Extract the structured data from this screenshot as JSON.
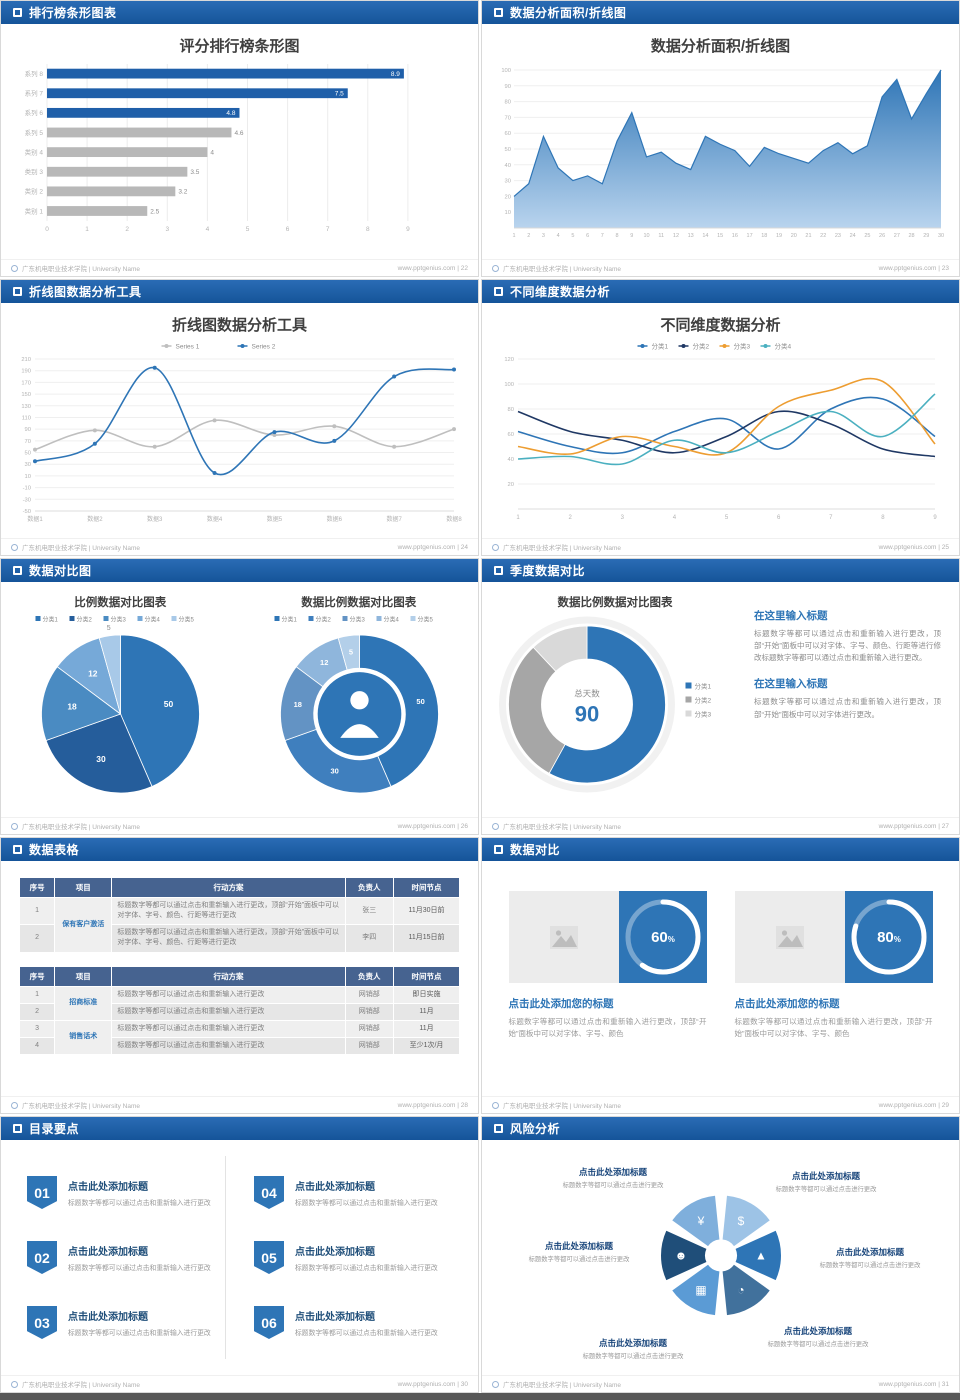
{
  "footer_left": "广东机电职业技术学院 | University Name",
  "accent": "#1f5fa9",
  "slides": [
    {
      "header": "排行榜条形图表",
      "title": "评分排行榜条形图",
      "footer_right": "www.pptgenius.com | 22",
      "chart_data": {
        "type": "bar_horizontal",
        "title": "评分排行榜条形图",
        "categories": [
          "系列 8",
          "系列 7",
          "系列 6",
          "系列 5",
          "类别 4",
          "类别 3",
          "类别 2",
          "类别 1"
        ],
        "values": [
          8.9,
          7.5,
          4.8,
          4.6,
          4,
          3.5,
          3.2,
          2.5
        ],
        "bar_colors": [
          "#1f5fa9",
          "#1f5fa9",
          "#1f5fa9",
          "#b8b8b8",
          "#b8b8b8",
          "#b8b8b8",
          "#b8b8b8",
          "#b8b8b8"
        ],
        "accent": "#1f5fa9",
        "xlim": [
          0,
          10
        ],
        "xticks": [
          0,
          1,
          2,
          3,
          4,
          5,
          6,
          7,
          8,
          9
        ]
      }
    },
    {
      "header": "数据分析面积/折线图",
      "title": "数据分析面积/折线图",
      "footer_right": "www.pptgenius.com | 23",
      "chart_data": {
        "type": "area",
        "title": "数据分析面积/折线图",
        "x": [
          1,
          2,
          3,
          4,
          5,
          6,
          7,
          8,
          9,
          10,
          11,
          12,
          13,
          14,
          15,
          16,
          17,
          18,
          19,
          20,
          21,
          22,
          23,
          24,
          25,
          26,
          27,
          28,
          29,
          30
        ],
        "values": [
          20,
          28,
          58,
          38,
          30,
          33,
          28,
          55,
          73,
          45,
          48,
          41,
          37,
          58,
          53,
          49,
          39,
          51,
          47,
          44,
          41,
          49,
          54,
          47,
          52,
          83,
          94,
          69,
          85,
          100
        ],
        "yticks": [
          10,
          20,
          30,
          40,
          50,
          60,
          70,
          80,
          90,
          100
        ],
        "ylim": [
          0,
          100
        ],
        "line_color": "#2e75b6",
        "fill_from": "#2e75b6",
        "fill_to": "#b9d4ee"
      }
    },
    {
      "header": "折线图数据分析工具",
      "title": "折线图数据分析工具",
      "footer_right": "www.pptgenius.com | 24",
      "chart_data": {
        "type": "line",
        "title": "折线图数据分析工具",
        "categories": [
          "数据1",
          "数据2",
          "数据3",
          "数据4",
          "数据5",
          "数据6",
          "数据7",
          "数据8"
        ],
        "ylim": [
          -50,
          210
        ],
        "yticks": [
          -50,
          -30,
          -10,
          10,
          30,
          50,
          70,
          90,
          110,
          130,
          150,
          170,
          190,
          210
        ],
        "markers": true,
        "series": [
          {
            "name": "Series 1",
            "color": "#bfbfbf",
            "values": [
              55,
              88,
              60,
              105,
              80,
              95,
              60,
              90
            ]
          },
          {
            "name": "Series 2",
            "color": "#2e75b6",
            "values": [
              35,
              65,
              195,
              15,
              85,
              70,
              180,
              192
            ]
          }
        ]
      }
    },
    {
      "header": "不同维度数据分析",
      "title": "不同维度数据分析",
      "footer_right": "www.pptgenius.com | 25",
      "chart_data": {
        "type": "line",
        "title": "不同维度数据分析",
        "categories": [
          "1",
          "2",
          "3",
          "4",
          "5",
          "6",
          "7",
          "8",
          "9"
        ],
        "ylim": [
          0,
          120
        ],
        "yticks": [
          20,
          40,
          60,
          80,
          100,
          120
        ],
        "markers": false,
        "series": [
          {
            "name": "分类1",
            "color": "#2e75b6",
            "values": [
              62,
              50,
              45,
              62,
              72,
              48,
              80,
              88,
              58
            ]
          },
          {
            "name": "分类2",
            "color": "#1f3864",
            "values": [
              78,
              62,
              55,
              45,
              58,
              78,
              68,
              48,
              42
            ]
          },
          {
            "name": "分类3",
            "color": "#ed9d31",
            "values": [
              50,
              44,
              58,
              50,
              45,
              82,
              95,
              102,
              52
            ]
          },
          {
            "name": "分类4",
            "color": "#4bb0c0",
            "values": [
              40,
              42,
              36,
              55,
              45,
              62,
              78,
              58,
              92
            ]
          }
        ]
      }
    },
    {
      "header": "数据对比图",
      "footer_right": "www.pptgenius.com | 26",
      "charts": [
        {
          "type": "pie",
          "title": "比例数据对比图表",
          "labels": [
            "分类1",
            "分类2",
            "分类3",
            "分类4",
            "分类5"
          ],
          "values": [
            50,
            30,
            18,
            12,
            5
          ],
          "colors": [
            "#2e75b6",
            "#255d9b",
            "#4a8bc2",
            "#76a9d8",
            "#a8c9e8"
          ],
          "labels_on": true,
          "legend": "top"
        },
        {
          "type": "donut",
          "title": "数据比例数据对比图表",
          "labels": [
            "分类1",
            "分类2",
            "分类3",
            "分类4",
            "分类5"
          ],
          "values": [
            50,
            30,
            18,
            12,
            5
          ],
          "colors": [
            "#2e75b6",
            "#3f7fbe",
            "#6393c4",
            "#8fb6dc",
            "#b3cfe9"
          ],
          "labels_on": true,
          "legend": "top",
          "center_icon": "person"
        }
      ]
    },
    {
      "header": "季度数据对比",
      "title": "数据比例数据对比图表",
      "footer_right": "www.pptgenius.com | 27",
      "chart_data": {
        "type": "donut",
        "title": "数据比例数据对比图表",
        "labels": [
          "分类1",
          "分类2",
          "分类3"
        ],
        "values": [
          58,
          30,
          12
        ],
        "colors": [
          "#2e75b6",
          "#a6a6a6",
          "#d9d9d9"
        ],
        "labels_on": false,
        "legend": "right",
        "outer_ring": true,
        "center_label": "总天数",
        "center_value": "90"
      },
      "sections": [
        {
          "heading": "在这里输入标题",
          "body": "标题数字等都可以通过点击和重新输入进行更改，顶部“开始”面板中可以对字体、字号、颜色、行距等进行修改标题数字等都可以通过点击和重新输入进行更改。"
        },
        {
          "heading": "在这里输入标题",
          "body": "标题数字等都可以通过点击和重新输入进行更改，顶部“开始”面板中可以对字体进行更改。"
        }
      ]
    },
    {
      "header": "数据表格",
      "footer_right": "www.pptgenius.com | 28",
      "tables": [
        {
          "headers": [
            "序号",
            "项目",
            "行动方案",
            "负责人",
            "时间节点"
          ],
          "rows": [
            {
              "no": "1",
              "project": "保有客户激活",
              "plan": "标题数字等都可以通过点击和重新输入进行更改，顶部“开始”面板中可以对字体、字号、颜色、行距等进行更改",
              "owner": "张三",
              "time": "11月30日前"
            },
            {
              "no": "2",
              "plan": "标题数字等都可以通过点击和重新输入进行更改，顶部“开始”面板中可以对字体、字号、颜色、行距等进行更改",
              "owner": "李四",
              "time": "11月15日前"
            }
          ]
        },
        {
          "headers": [
            "序号",
            "项目",
            "行动方案",
            "负责人",
            "时间节点"
          ],
          "rows": [
            {
              "no": "1",
              "project": "招商标准",
              "plan": "标题数字等都可以通过点击和重新输入进行更改",
              "owner": "网销部",
              "time": "即日实施"
            },
            {
              "no": "2",
              "plan": "标题数字等都可以通过点击和重新输入进行更改",
              "owner": "网销部",
              "time": "11月"
            },
            {
              "no": "3",
              "project": "销售话术",
              "plan": "标题数字等都可以通过点击和重新输入进行更改",
              "owner": "网销部",
              "time": "11月"
            },
            {
              "no": "4",
              "plan": "标题数字等都可以通过点击和重新输入进行更改",
              "owner": "网销部",
              "time": "至少1次/月"
            }
          ]
        }
      ]
    },
    {
      "header": "数据对比",
      "footer_right": "www.pptgenius.com | 29",
      "cards": [
        {
          "title": "点击此处添加您的标题",
          "desc": "标题数字等都可以通过点击和重新输入进行更改，顶部“开 始”面板中可以对字体、字号、颜色",
          "chart_data": {
            "type": "progress",
            "percent": 60
          }
        },
        {
          "title": "点击此处添加您的标题",
          "desc": "标题数字等都可以通过点击和重新输入进行更改，顶部“开 始”面板中可以对字体、字号、颜色",
          "chart_data": {
            "type": "progress",
            "percent": 80
          }
        }
      ]
    },
    {
      "header": "目录要点",
      "footer_right": "www.pptgenius.com | 30",
      "items": [
        {
          "num": "01",
          "title": "点击此处添加标题",
          "desc": "标题数字等都可以通过点击和重新输入进行更改"
        },
        {
          "num": "02",
          "title": "点击此处添加标题",
          "desc": "标题数字等都可以通过点击和重新输入进行更改"
        },
        {
          "num": "03",
          "title": "点击此处添加标题",
          "desc": "标题数字等都可以通过点击和重新输入进行更改"
        },
        {
          "num": "04",
          "title": "点击此处添加标题",
          "desc": "标题数字等都可以通过点击和重新输入进行更改"
        },
        {
          "num": "05",
          "title": "点击此处添加标题",
          "desc": "标题数字等都可以通过点击和重新输入进行更改"
        },
        {
          "num": "06",
          "title": "点击此处添加标题",
          "desc": "标题数字等都可以通过点击和重新输入进行更改"
        }
      ]
    },
    {
      "header": "风险分析",
      "footer_right": "www.pptgenius.com | 31",
      "labels": [
        {
          "title": "点击此处添加标题",
          "desc": "标题数字等都可以通过点击进行更改"
        },
        {
          "title": "点击此处添加标题",
          "desc": "标题数字等都可以通过点击进行更改"
        },
        {
          "title": "点击此处添加标题",
          "desc": "标题数字等都可以通过点击进行更改"
        },
        {
          "title": "点击此处添加标题",
          "desc": "标题数字等都可以通过点击进行更改"
        },
        {
          "title": "点击此处添加标题",
          "desc": "标题数字等都可以通过点击进行更改"
        },
        {
          "title": "点击此处添加标题",
          "desc": "标题数字等都可以通过点击进行更改"
        }
      ],
      "diagram": {
        "type": "aperture",
        "petals": [
          {
            "name": "coins-icon",
            "glyph": "$",
            "color": "#9dc3e6"
          },
          {
            "name": "growth-icon",
            "glyph": "▲",
            "color": "#2e75b6"
          },
          {
            "name": "pie-chart-icon",
            "glyph": "◔",
            "color": "#41719c"
          },
          {
            "name": "bar-chart-icon",
            "glyph": "▦",
            "color": "#5b9bd5"
          },
          {
            "name": "people-icon",
            "glyph": "☻",
            "color": "#1f4e79"
          },
          {
            "name": "money-bag-icon",
            "glyph": "¥",
            "color": "#7fafdc"
          }
        ]
      }
    }
  ]
}
